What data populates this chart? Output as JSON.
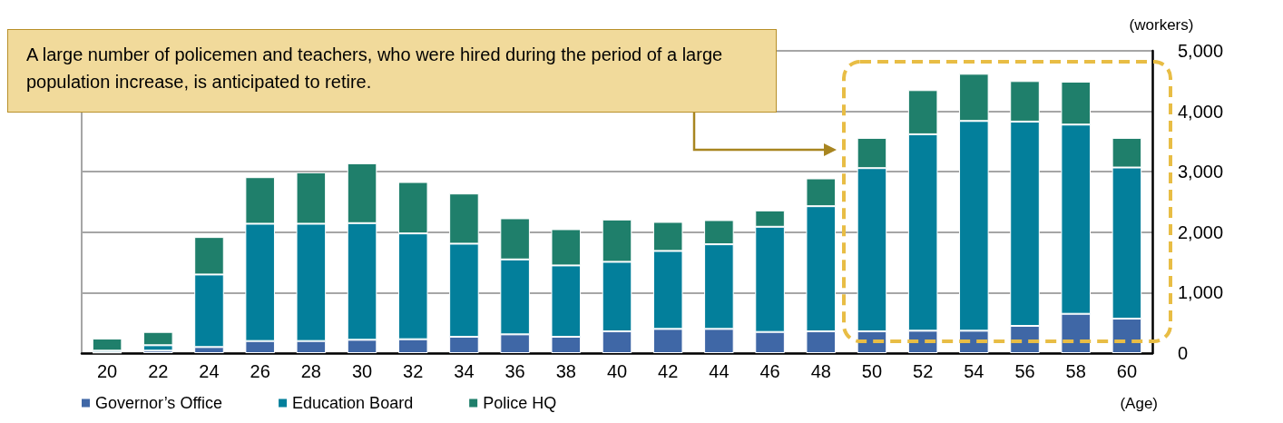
{
  "chart_data": {
    "type": "bar",
    "stacked": true,
    "ylabel": "(workers)",
    "xlabel": "(Age)",
    "categories": [
      "20",
      "22",
      "24",
      "26",
      "28",
      "30",
      "32",
      "34",
      "36",
      "38",
      "40",
      "42",
      "44",
      "46",
      "48",
      "50",
      "52",
      "54",
      "56",
      "58",
      "60"
    ],
    "series": [
      {
        "name": "Governor’s Office",
        "color": "#3f67a6",
        "values": [
          10,
          40,
          100,
          200,
          200,
          220,
          230,
          270,
          310,
          270,
          360,
          400,
          400,
          350,
          360,
          360,
          370,
          370,
          450,
          650,
          570
        ]
      },
      {
        "name": "Education Board",
        "color": "#037f9b",
        "values": [
          30,
          90,
          1200,
          1940,
          1940,
          1930,
          1750,
          1540,
          1240,
          1180,
          1150,
          1290,
          1400,
          1740,
          2070,
          2700,
          3250,
          3470,
          3380,
          3130,
          2500
        ]
      },
      {
        "name": "Police HQ",
        "color": "#1f7f6b",
        "values": [
          200,
          220,
          620,
          770,
          850,
          990,
          850,
          830,
          680,
          600,
          700,
          480,
          400,
          270,
          460,
          500,
          730,
          780,
          670,
          710,
          490
        ]
      }
    ],
    "ylim": [
      0,
      5000
    ],
    "yticks": [
      0,
      {
        "value": 1000,
        "label": "1,000"
      },
      {
        "value": 2000,
        "label": "2,000"
      },
      {
        "value": 3000,
        "label": "3,000"
      },
      {
        "value": 4000,
        "label": "4,000"
      },
      {
        "value": 5000,
        "label": "5,000"
      }
    ],
    "grid": "y",
    "legend": "bottom left",
    "annotations": [
      "A large number of policemen and teachers, who were hired during the period of a large population increase, is anticipated to retire."
    ]
  }
}
